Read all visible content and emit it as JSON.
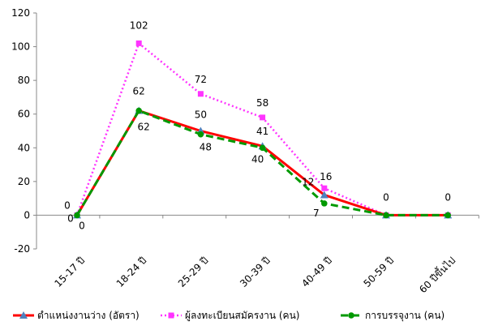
{
  "chart_data": {
    "type": "line",
    "categories": [
      "15-17 ปี",
      "18-24 ปี",
      "25-29 ปี",
      "30-39 ปี",
      "40-49 ปี",
      "50-59 ปี",
      "60 ปีขึ้นไป"
    ],
    "ylim": [
      -20,
      120
    ],
    "yticks": [
      -20,
      0,
      20,
      40,
      60,
      80,
      100,
      120
    ],
    "grid": false,
    "legend_position": "bottom",
    "series": [
      {
        "name": "ตำแหน่งงานว่าง (อัตรา)",
        "values": [
          0,
          62,
          50,
          41,
          12,
          0,
          0
        ],
        "labels": [
          "",
          "62",
          "50",
          "41",
          "12",
          "0",
          "0"
        ],
        "color": "#ff0000",
        "marker": "triangle",
        "dash": "solid"
      },
      {
        "name": "ผู้ลงทะเบียนสมัครงาน (คน)",
        "values": [
          0,
          102,
          72,
          58,
          16,
          0,
          0
        ],
        "labels": [
          "0",
          "102",
          "72",
          "58",
          "16",
          "",
          ""
        ],
        "color": "#ff33ff",
        "marker": "square",
        "dash": "dotted"
      },
      {
        "name": "การบรรจุงาน (คน)",
        "values": [
          0,
          62,
          48,
          40,
          7,
          0,
          0
        ],
        "labels": [
          "0",
          "62",
          "48",
          "40",
          "7",
          "",
          ""
        ],
        "color": "#009900",
        "marker": "circle",
        "dash": "dashed"
      }
    ],
    "extra_labels": [
      {
        "text": "0",
        "category": 0,
        "value": 0
      }
    ]
  }
}
